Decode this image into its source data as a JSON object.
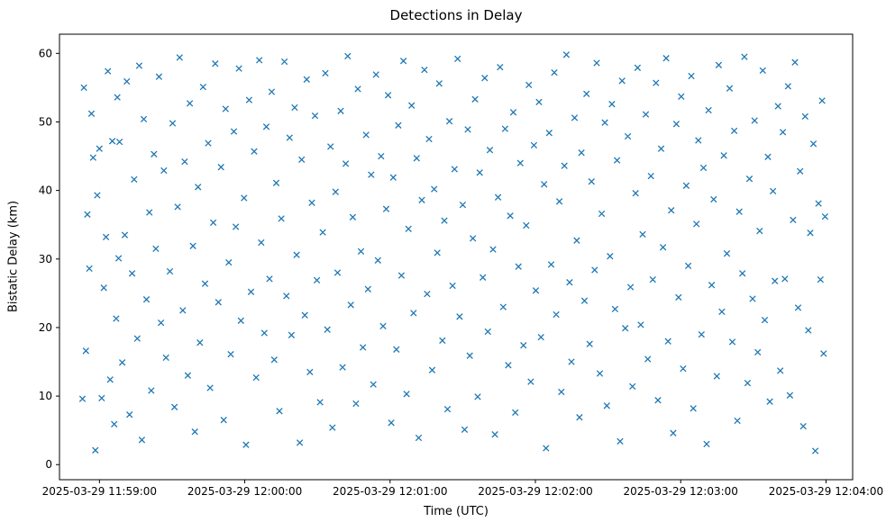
{
  "chart_data": {
    "type": "scatter",
    "title": "Detections in Delay",
    "xlabel": "Time (UTC)",
    "ylabel": "Bistatic Delay (km)",
    "x_base": "2025-03-29 11:59:00",
    "x_unit": "seconds relative to 2025-03-29 11:59:00 UTC",
    "xlim": [
      -16.5,
      311
    ],
    "ylim": [
      -2.2,
      62.8
    ],
    "grid": false,
    "legend": "none",
    "marker": {
      "shape": "x",
      "color": "#1f77b4",
      "half_size": 3.2,
      "stroke_width": 1.3
    },
    "x_ticks": [
      {
        "value": 0,
        "label": "2025-03-29 11:59:00"
      },
      {
        "value": 60,
        "label": "2025-03-29 12:00:00"
      },
      {
        "value": 120,
        "label": "2025-03-29 12:01:00"
      },
      {
        "value": 180,
        "label": "2025-03-29 12:02:00"
      },
      {
        "value": 240,
        "label": "2025-03-29 12:03:00"
      },
      {
        "value": 300,
        "label": "2025-03-29 12:04:00"
      }
    ],
    "y_ticks": [
      0,
      10,
      20,
      30,
      40,
      50,
      60
    ],
    "points": [
      [
        -7.0,
        9.6
      ],
      [
        -6.4,
        55.0
      ],
      [
        -5.6,
        16.6
      ],
      [
        -5.0,
        36.5
      ],
      [
        -4.2,
        28.6
      ],
      [
        -3.3,
        51.2
      ],
      [
        -2.6,
        44.8
      ],
      [
        -1.7,
        2.1
      ],
      [
        -0.9,
        39.3
      ],
      [
        0.0,
        46.1
      ],
      [
        0.9,
        9.7
      ],
      [
        1.8,
        25.8
      ],
      [
        2.7,
        33.2
      ],
      [
        3.5,
        57.4
      ],
      [
        4.4,
        12.4
      ],
      [
        5.3,
        47.2
      ],
      [
        6.1,
        5.9
      ],
      [
        6.9,
        21.3
      ],
      [
        7.4,
        53.6
      ],
      [
        7.9,
        30.1
      ],
      [
        8.3,
        47.1
      ],
      [
        9.4,
        14.9
      ],
      [
        10.5,
        33.5
      ],
      [
        11.3,
        55.9
      ],
      [
        12.4,
        7.3
      ],
      [
        13.5,
        27.9
      ],
      [
        14.3,
        41.6
      ],
      [
        15.6,
        18.4
      ],
      [
        16.4,
        58.2
      ],
      [
        17.5,
        3.6
      ],
      [
        18.3,
        50.4
      ],
      [
        19.4,
        24.1
      ],
      [
        20.6,
        36.8
      ],
      [
        21.4,
        10.8
      ],
      [
        22.5,
        45.3
      ],
      [
        23.3,
        31.5
      ],
      [
        24.6,
        56.6
      ],
      [
        25.4,
        20.7
      ],
      [
        26.6,
        42.9
      ],
      [
        27.5,
        15.6
      ],
      [
        29.1,
        28.2
      ],
      [
        30.2,
        49.8
      ],
      [
        31.0,
        8.4
      ],
      [
        32.3,
        37.6
      ],
      [
        33.1,
        59.4
      ],
      [
        34.4,
        22.5
      ],
      [
        35.2,
        44.2
      ],
      [
        36.5,
        13.0
      ],
      [
        37.3,
        52.7
      ],
      [
        38.6,
        31.9
      ],
      [
        39.4,
        4.8
      ],
      [
        40.7,
        40.5
      ],
      [
        41.5,
        17.8
      ],
      [
        42.8,
        55.1
      ],
      [
        43.6,
        26.4
      ],
      [
        44.9,
        46.9
      ],
      [
        45.7,
        11.2
      ],
      [
        47.0,
        35.3
      ],
      [
        47.8,
        58.5
      ],
      [
        49.1,
        23.7
      ],
      [
        50.2,
        43.4
      ],
      [
        51.3,
        6.5
      ],
      [
        52.1,
        51.9
      ],
      [
        53.4,
        29.5
      ],
      [
        54.2,
        16.1
      ],
      [
        55.5,
        48.6
      ],
      [
        56.3,
        34.7
      ],
      [
        57.6,
        57.8
      ],
      [
        58.4,
        21.0
      ],
      [
        59.7,
        38.9
      ],
      [
        60.5,
        2.9
      ],
      [
        61.8,
        53.2
      ],
      [
        62.6,
        25.2
      ],
      [
        63.9,
        45.7
      ],
      [
        64.7,
        12.7
      ],
      [
        66.0,
        59.0
      ],
      [
        66.8,
        32.4
      ],
      [
        68.1,
        19.2
      ],
      [
        68.9,
        49.3
      ],
      [
        70.2,
        27.1
      ],
      [
        71.1,
        54.4
      ],
      [
        72.2,
        15.3
      ],
      [
        73.0,
        41.1
      ],
      [
        74.3,
        7.8
      ],
      [
        75.1,
        35.9
      ],
      [
        76.4,
        58.8
      ],
      [
        77.2,
        24.6
      ],
      [
        78.5,
        47.7
      ],
      [
        79.3,
        18.9
      ],
      [
        80.6,
        52.1
      ],
      [
        81.4,
        30.6
      ],
      [
        82.7,
        3.2
      ],
      [
        83.5,
        44.5
      ],
      [
        84.8,
        21.8
      ],
      [
        85.6,
        56.2
      ],
      [
        86.9,
        13.5
      ],
      [
        87.7,
        38.2
      ],
      [
        89.0,
        50.9
      ],
      [
        89.8,
        26.9
      ],
      [
        91.1,
        9.1
      ],
      [
        92.2,
        33.9
      ],
      [
        93.3,
        57.1
      ],
      [
        94.1,
        19.7
      ],
      [
        95.4,
        46.4
      ],
      [
        96.2,
        5.4
      ],
      [
        97.5,
        39.8
      ],
      [
        98.3,
        28.0
      ],
      [
        99.6,
        51.6
      ],
      [
        100.4,
        14.2
      ],
      [
        101.7,
        43.9
      ],
      [
        102.5,
        59.6
      ],
      [
        103.8,
        23.3
      ],
      [
        104.6,
        36.1
      ],
      [
        105.9,
        8.9
      ],
      [
        106.7,
        54.8
      ],
      [
        108.0,
        31.1
      ],
      [
        108.8,
        17.1
      ],
      [
        110.1,
        48.1
      ],
      [
        110.9,
        25.6
      ],
      [
        112.2,
        42.3
      ],
      [
        113.1,
        11.7
      ],
      [
        114.2,
        56.9
      ],
      [
        115.0,
        29.8
      ],
      [
        116.3,
        45.0
      ],
      [
        117.1,
        20.2
      ],
      [
        118.4,
        37.3
      ],
      [
        119.2,
        53.9
      ],
      [
        120.5,
        6.1
      ],
      [
        121.3,
        41.9
      ],
      [
        122.6,
        16.8
      ],
      [
        123.4,
        49.5
      ],
      [
        124.7,
        27.6
      ],
      [
        125.5,
        58.9
      ],
      [
        126.8,
        10.3
      ],
      [
        127.6,
        34.4
      ],
      [
        128.9,
        52.4
      ],
      [
        129.7,
        22.1
      ],
      [
        131.0,
        44.7
      ],
      [
        131.8,
        3.9
      ],
      [
        133.1,
        38.6
      ],
      [
        134.2,
        57.6
      ],
      [
        135.3,
        24.9
      ],
      [
        136.1,
        47.5
      ],
      [
        137.4,
        13.8
      ],
      [
        138.2,
        40.2
      ],
      [
        139.5,
        30.9
      ],
      [
        140.3,
        55.6
      ],
      [
        141.6,
        18.1
      ],
      [
        142.4,
        35.6
      ],
      [
        143.7,
        8.1
      ],
      [
        144.5,
        50.1
      ],
      [
        145.8,
        26.1
      ],
      [
        146.6,
        43.1
      ],
      [
        147.9,
        59.2
      ],
      [
        148.7,
        21.6
      ],
      [
        150.0,
        37.9
      ],
      [
        150.8,
        5.1
      ],
      [
        152.1,
        48.9
      ],
      [
        152.9,
        15.9
      ],
      [
        154.2,
        33.0
      ],
      [
        155.1,
        53.3
      ],
      [
        156.2,
        9.9
      ],
      [
        157.0,
        42.6
      ],
      [
        158.3,
        27.3
      ],
      [
        159.1,
        56.4
      ],
      [
        160.4,
        19.4
      ],
      [
        161.2,
        45.9
      ],
      [
        162.5,
        31.4
      ],
      [
        163.3,
        4.4
      ],
      [
        164.6,
        39.0
      ],
      [
        165.4,
        58.0
      ],
      [
        166.7,
        23.0
      ],
      [
        167.5,
        49.0
      ],
      [
        168.8,
        14.5
      ],
      [
        169.6,
        36.3
      ],
      [
        170.9,
        51.4
      ],
      [
        171.7,
        7.6
      ],
      [
        173.0,
        28.9
      ],
      [
        173.8,
        44.0
      ],
      [
        175.1,
        17.4
      ],
      [
        176.2,
        34.9
      ],
      [
        177.3,
        55.4
      ],
      [
        178.1,
        12.1
      ],
      [
        179.4,
        46.6
      ],
      [
        180.2,
        25.4
      ],
      [
        181.5,
        52.9
      ],
      [
        182.3,
        18.6
      ],
      [
        183.6,
        40.9
      ],
      [
        184.4,
        2.4
      ],
      [
        185.7,
        48.4
      ],
      [
        186.5,
        29.2
      ],
      [
        187.8,
        57.2
      ],
      [
        188.6,
        21.9
      ],
      [
        189.9,
        38.4
      ],
      [
        190.7,
        10.6
      ],
      [
        192.0,
        43.6
      ],
      [
        192.8,
        59.8
      ],
      [
        194.1,
        26.6
      ],
      [
        194.9,
        15.0
      ],
      [
        196.2,
        50.6
      ],
      [
        197.1,
        32.7
      ],
      [
        198.2,
        6.9
      ],
      [
        199.0,
        45.5
      ],
      [
        200.3,
        23.9
      ],
      [
        201.1,
        54.1
      ],
      [
        202.4,
        17.6
      ],
      [
        203.2,
        41.3
      ],
      [
        204.5,
        28.4
      ],
      [
        205.3,
        58.6
      ],
      [
        206.6,
        13.3
      ],
      [
        207.4,
        36.6
      ],
      [
        208.7,
        49.9
      ],
      [
        209.5,
        8.6
      ],
      [
        210.8,
        30.4
      ],
      [
        211.6,
        52.6
      ],
      [
        212.9,
        22.7
      ],
      [
        213.7,
        44.4
      ],
      [
        215.0,
        3.4
      ],
      [
        215.8,
        56.0
      ],
      [
        217.1,
        19.9
      ],
      [
        218.2,
        47.9
      ],
      [
        219.3,
        25.9
      ],
      [
        220.1,
        11.4
      ],
      [
        221.4,
        39.6
      ],
      [
        222.2,
        57.9
      ],
      [
        223.5,
        20.4
      ],
      [
        224.3,
        33.6
      ],
      [
        225.6,
        51.1
      ],
      [
        226.4,
        15.4
      ],
      [
        227.7,
        42.1
      ],
      [
        228.5,
        27.0
      ],
      [
        229.8,
        55.7
      ],
      [
        230.6,
        9.4
      ],
      [
        231.9,
        46.1
      ],
      [
        232.7,
        31.7
      ],
      [
        234.0,
        59.3
      ],
      [
        234.8,
        18.0
      ],
      [
        236.1,
        37.1
      ],
      [
        236.9,
        4.6
      ],
      [
        238.2,
        49.7
      ],
      [
        239.1,
        24.4
      ],
      [
        240.2,
        53.7
      ],
      [
        241.0,
        14.0
      ],
      [
        242.3,
        40.7
      ],
      [
        243.1,
        29.0
      ],
      [
        244.4,
        56.7
      ],
      [
        245.2,
        8.2
      ],
      [
        246.5,
        35.1
      ],
      [
        247.3,
        47.3
      ],
      [
        248.6,
        19.0
      ],
      [
        249.4,
        43.3
      ],
      [
        250.7,
        3.0
      ],
      [
        251.5,
        51.7
      ],
      [
        252.8,
        26.2
      ],
      [
        253.6,
        38.7
      ],
      [
        254.9,
        12.9
      ],
      [
        255.7,
        58.3
      ],
      [
        257.0,
        22.3
      ],
      [
        257.8,
        45.1
      ],
      [
        259.1,
        30.8
      ],
      [
        260.2,
        54.9
      ],
      [
        261.3,
        17.9
      ],
      [
        262.1,
        48.7
      ],
      [
        263.4,
        6.4
      ],
      [
        264.2,
        36.9
      ],
      [
        265.5,
        27.9
      ],
      [
        266.3,
        59.5
      ],
      [
        267.6,
        11.9
      ],
      [
        268.4,
        41.7
      ],
      [
        269.7,
        24.2
      ],
      [
        270.5,
        50.2
      ],
      [
        271.8,
        16.4
      ],
      [
        272.6,
        34.1
      ],
      [
        273.9,
        57.5
      ],
      [
        274.7,
        21.1
      ],
      [
        276.0,
        44.9
      ],
      [
        276.8,
        9.2
      ],
      [
        278.1,
        39.9
      ],
      [
        278.9,
        26.8
      ],
      [
        280.2,
        52.3
      ],
      [
        281.1,
        13.7
      ],
      [
        282.2,
        48.5
      ],
      [
        283.0,
        27.1
      ],
      [
        284.3,
        55.2
      ],
      [
        285.1,
        10.1
      ],
      [
        286.4,
        35.7
      ],
      [
        287.2,
        58.7
      ],
      [
        288.5,
        22.9
      ],
      [
        289.3,
        42.8
      ],
      [
        290.6,
        5.6
      ],
      [
        291.4,
        50.8
      ],
      [
        292.7,
        19.6
      ],
      [
        293.5,
        33.8
      ],
      [
        294.8,
        46.8
      ],
      [
        295.6,
        2.0
      ],
      [
        296.9,
        38.1
      ],
      [
        297.7,
        27.0
      ],
      [
        298.4,
        53.1
      ],
      [
        299.0,
        16.2
      ],
      [
        299.6,
        36.2
      ]
    ]
  }
}
